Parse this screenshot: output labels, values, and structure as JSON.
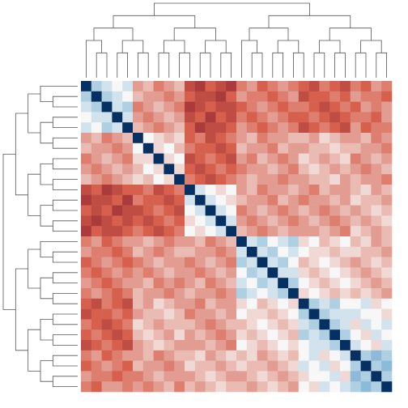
{
  "chart_data": {
    "type": "clustermap",
    "vlim": [
      -1,
      1
    ],
    "colormap": [
      "#67001f",
      "#d6604d",
      "#f7f7f7",
      "#4393c3",
      "#053061"
    ],
    "matrix": [
      [
        1,
        0.2,
        0.1,
        0,
        0.1,
        -0.3,
        -0.2,
        -0.4,
        -0.3,
        -0.2,
        -0.6,
        -0.7,
        -0.5,
        -0.6,
        -0.7,
        -0.4,
        -0.3,
        -0.5,
        -0.4,
        -0.3,
        -0.4,
        -0.5,
        -0.6,
        -0.4,
        -0.5,
        -0.6,
        -0.4,
        -0.5,
        -0.3,
        -0.4
      ],
      [
        0.2,
        1,
        0.2,
        0.1,
        0,
        -0.2,
        -0.3,
        -0.3,
        -0.4,
        -0.3,
        -0.5,
        -0.6,
        -0.6,
        -0.7,
        -0.5,
        -0.3,
        -0.4,
        -0.4,
        -0.5,
        -0.4,
        -0.3,
        -0.6,
        -0.5,
        -0.5,
        -0.4,
        -0.5,
        -0.3,
        -0.4,
        -0.4,
        -0.5
      ],
      [
        0.1,
        0.2,
        1,
        0.1,
        0.2,
        -0.4,
        -0.3,
        -0.2,
        -0.3,
        -0.4,
        -0.7,
        -0.6,
        -0.5,
        -0.6,
        -0.6,
        -0.5,
        -0.4,
        -0.3,
        -0.4,
        -0.5,
        -0.4,
        -0.4,
        -0.5,
        -0.6,
        -0.5,
        -0.4,
        -0.5,
        -0.3,
        -0.4,
        -0.3
      ],
      [
        0,
        0.1,
        0.1,
        1,
        0.1,
        -0.3,
        -0.4,
        -0.3,
        -0.2,
        -0.3,
        -0.6,
        -0.5,
        -0.7,
        -0.5,
        -0.6,
        -0.4,
        -0.5,
        -0.4,
        -0.3,
        -0.4,
        -0.5,
        -0.5,
        -0.4,
        -0.5,
        -0.6,
        -0.5,
        -0.4,
        -0.4,
        -0.5,
        -0.3
      ],
      [
        0.1,
        0,
        0.2,
        0.1,
        1,
        -0.2,
        -0.3,
        -0.4,
        -0.3,
        -0.2,
        -0.5,
        -0.7,
        -0.6,
        -0.6,
        -0.5,
        -0.3,
        -0.4,
        -0.5,
        -0.4,
        -0.3,
        -0.4,
        -0.6,
        -0.5,
        -0.4,
        -0.5,
        -0.6,
        -0.3,
        -0.5,
        -0.4,
        -0.4
      ],
      [
        -0.3,
        -0.2,
        -0.4,
        -0.3,
        -0.2,
        1,
        0,
        -0.1,
        -0.2,
        -0.1,
        -0.5,
        -0.4,
        -0.6,
        -0.5,
        -0.4,
        -0.3,
        -0.2,
        -0.4,
        -0.3,
        -0.3,
        -0.2,
        -0.2,
        -0.3,
        -0.1,
        -0.2,
        -0.3,
        -0.3,
        -0.2,
        -0.4,
        -0.3
      ],
      [
        -0.2,
        -0.3,
        -0.3,
        -0.4,
        -0.3,
        0,
        1,
        -0.1,
        0,
        -0.2,
        -0.4,
        -0.5,
        -0.5,
        -0.6,
        -0.5,
        -0.2,
        -0.3,
        -0.3,
        -0.4,
        -0.2,
        -0.3,
        -0.3,
        -0.2,
        -0.2,
        -0.1,
        -0.2,
        -0.2,
        -0.3,
        -0.3,
        -0.4
      ],
      [
        -0.4,
        -0.3,
        -0.2,
        -0.3,
        -0.4,
        -0.1,
        -0.1,
        1,
        -0.1,
        0,
        -0.6,
        -0.5,
        -0.4,
        -0.5,
        -0.6,
        -0.3,
        -0.4,
        -0.2,
        -0.3,
        -0.4,
        -0.3,
        -0.1,
        -0.2,
        -0.3,
        -0.2,
        -0.1,
        -0.4,
        -0.3,
        -0.2,
        -0.3
      ],
      [
        -0.3,
        -0.4,
        -0.3,
        -0.2,
        -0.3,
        -0.2,
        0,
        -0.1,
        1,
        -0.1,
        -0.5,
        -0.6,
        -0.5,
        -0.4,
        -0.5,
        -0.4,
        -0.3,
        -0.3,
        -0.2,
        -0.3,
        -0.4,
        -0.2,
        -0.1,
        -0.2,
        -0.3,
        -0.2,
        -0.3,
        -0.4,
        -0.3,
        -0.2
      ],
      [
        -0.2,
        -0.3,
        -0.4,
        -0.3,
        -0.2,
        -0.1,
        -0.2,
        0,
        -0.1,
        1,
        -0.4,
        -0.5,
        -0.6,
        -0.5,
        -0.4,
        -0.3,
        -0.2,
        -0.3,
        -0.3,
        -0.4,
        -0.3,
        -0.3,
        -0.2,
        -0.2,
        -0.1,
        -0.3,
        -0.2,
        -0.3,
        -0.3,
        -0.4
      ],
      [
        -0.6,
        -0.5,
        -0.7,
        -0.6,
        -0.5,
        -0.5,
        -0.4,
        -0.6,
        -0.5,
        -0.4,
        1,
        0.1,
        0,
        -0.1,
        0,
        -0.3,
        -0.2,
        -0.4,
        -0.3,
        -0.3,
        -0.2,
        -0.3,
        -0.4,
        -0.2,
        -0.3,
        -0.3,
        -0.2,
        -0.1,
        -0.3,
        -0.2
      ],
      [
        -0.7,
        -0.6,
        -0.6,
        -0.5,
        -0.7,
        -0.4,
        -0.5,
        -0.5,
        -0.6,
        -0.5,
        0.1,
        1,
        0.1,
        0,
        -0.1,
        -0.2,
        -0.3,
        -0.3,
        -0.4,
        -0.2,
        -0.3,
        -0.4,
        -0.3,
        -0.3,
        -0.2,
        -0.3,
        -0.1,
        -0.2,
        -0.2,
        -0.3
      ],
      [
        -0.5,
        -0.6,
        -0.5,
        -0.7,
        -0.6,
        -0.6,
        -0.5,
        -0.4,
        -0.5,
        -0.6,
        0,
        0.1,
        1,
        0.1,
        0,
        -0.4,
        -0.3,
        -0.2,
        -0.3,
        -0.4,
        -0.3,
        -0.2,
        -0.3,
        -0.4,
        -0.3,
        -0.2,
        -0.3,
        -0.2,
        -0.1,
        -0.2
      ],
      [
        -0.6,
        -0.7,
        -0.6,
        -0.5,
        -0.6,
        -0.5,
        -0.6,
        -0.5,
        -0.4,
        -0.5,
        -0.1,
        0,
        0.1,
        1,
        0.1,
        -0.3,
        -0.4,
        -0.3,
        -0.2,
        -0.3,
        -0.4,
        -0.3,
        -0.2,
        -0.3,
        -0.4,
        -0.3,
        -0.2,
        -0.3,
        -0.2,
        -0.1
      ],
      [
        -0.7,
        -0.5,
        -0.6,
        -0.6,
        -0.5,
        -0.4,
        -0.5,
        -0.6,
        -0.5,
        -0.4,
        0,
        -0.1,
        0,
        0.1,
        1,
        -0.2,
        -0.3,
        -0.4,
        -0.3,
        -0.2,
        -0.3,
        -0.3,
        -0.3,
        -0.2,
        -0.3,
        -0.4,
        -0.1,
        -0.2,
        -0.3,
        -0.2
      ],
      [
        -0.4,
        -0.3,
        -0.5,
        -0.4,
        -0.3,
        -0.3,
        -0.2,
        -0.3,
        -0.4,
        -0.3,
        -0.3,
        -0.2,
        -0.4,
        -0.3,
        -0.2,
        1,
        0.1,
        0.2,
        0,
        0.1,
        0.2,
        -0.1,
        0,
        -0.2,
        -0.1,
        0,
        -0.2,
        -0.1,
        -0.3,
        -0.2
      ],
      [
        -0.3,
        -0.4,
        -0.4,
        -0.5,
        -0.4,
        -0.2,
        -0.3,
        -0.4,
        -0.3,
        -0.2,
        -0.2,
        -0.3,
        -0.3,
        -0.4,
        -0.3,
        0.1,
        1,
        0.1,
        0.2,
        0,
        0.1,
        0,
        -0.1,
        -0.1,
        -0.2,
        -0.1,
        -0.1,
        -0.2,
        -0.2,
        -0.3
      ],
      [
        -0.5,
        -0.4,
        -0.3,
        -0.4,
        -0.5,
        -0.4,
        -0.3,
        -0.2,
        -0.3,
        -0.3,
        -0.4,
        -0.3,
        -0.2,
        -0.3,
        -0.4,
        0.2,
        0.1,
        1,
        0.1,
        0.2,
        0,
        -0.2,
        -0.1,
        0,
        -0.1,
        -0.2,
        -0.3,
        -0.2,
        -0.1,
        -0.2
      ],
      [
        -0.4,
        -0.5,
        -0.4,
        -0.3,
        -0.4,
        -0.3,
        -0.4,
        -0.3,
        -0.2,
        -0.3,
        -0.3,
        -0.4,
        -0.3,
        -0.2,
        -0.3,
        0,
        0.2,
        0.1,
        1,
        0.1,
        0.1,
        -0.1,
        -0.2,
        -0.1,
        0,
        -0.1,
        -0.2,
        -0.3,
        -0.2,
        -0.1
      ],
      [
        -0.3,
        -0.4,
        -0.5,
        -0.4,
        -0.3,
        -0.3,
        -0.2,
        -0.4,
        -0.3,
        -0.4,
        -0.3,
        -0.2,
        -0.4,
        -0.3,
        -0.2,
        0.1,
        0,
        0.2,
        0.1,
        1,
        0.2,
        0,
        -0.1,
        -0.2,
        -0.1,
        0,
        -0.1,
        -0.2,
        -0.3,
        -0.2
      ],
      [
        -0.4,
        -0.3,
        -0.4,
        -0.5,
        -0.4,
        -0.2,
        -0.3,
        -0.3,
        -0.4,
        -0.3,
        -0.2,
        -0.3,
        -0.3,
        -0.4,
        -0.3,
        0.2,
        0.1,
        0,
        0.1,
        0.2,
        1,
        -0.1,
        0,
        -0.1,
        -0.2,
        -0.1,
        -0.2,
        -0.1,
        -0.2,
        -0.3
      ],
      [
        -0.5,
        -0.6,
        -0.4,
        -0.5,
        -0.6,
        -0.2,
        -0.3,
        -0.1,
        -0.2,
        -0.3,
        -0.3,
        -0.4,
        -0.2,
        -0.3,
        -0.3,
        -0.1,
        0,
        -0.2,
        -0.1,
        0,
        -0.1,
        1,
        0.2,
        0.1,
        0.2,
        0,
        0,
        0.1,
        -0.1,
        0
      ],
      [
        -0.6,
        -0.5,
        -0.5,
        -0.4,
        -0.5,
        -0.3,
        -0.2,
        -0.2,
        -0.1,
        -0.2,
        -0.4,
        -0.3,
        -0.3,
        -0.2,
        -0.3,
        0,
        -0.1,
        -0.1,
        -0.2,
        -0.1,
        0,
        0.2,
        1,
        0.2,
        0.1,
        0.1,
        0.1,
        0,
        0,
        -0.1
      ],
      [
        -0.4,
        -0.5,
        -0.6,
        -0.5,
        -0.4,
        -0.1,
        -0.2,
        -0.3,
        -0.2,
        -0.2,
        -0.2,
        -0.3,
        -0.4,
        -0.3,
        -0.2,
        -0.2,
        -0.1,
        0,
        -0.1,
        -0.2,
        -0.1,
        0.1,
        0.2,
        1,
        0.2,
        0.1,
        -0.1,
        0.1,
        0,
        0.1
      ],
      [
        -0.5,
        -0.4,
        -0.5,
        -0.6,
        -0.5,
        -0.2,
        -0.1,
        -0.2,
        -0.3,
        -0.1,
        -0.3,
        -0.2,
        -0.3,
        -0.4,
        -0.3,
        -0.1,
        -0.2,
        -0.1,
        0,
        -0.1,
        -0.2,
        0.2,
        0.1,
        0.2,
        1,
        0.2,
        0,
        -0.1,
        0.1,
        0
      ],
      [
        -0.6,
        -0.5,
        -0.4,
        -0.5,
        -0.6,
        -0.3,
        -0.2,
        -0.1,
        -0.2,
        -0.3,
        -0.3,
        -0.3,
        -0.2,
        -0.3,
        -0.4,
        0,
        -0.1,
        -0.2,
        -0.1,
        0,
        -0.1,
        0,
        0.1,
        0.1,
        0.2,
        1,
        0.1,
        0,
        -0.1,
        0.1
      ],
      [
        -0.4,
        -0.3,
        -0.5,
        -0.4,
        -0.3,
        -0.3,
        -0.2,
        -0.4,
        -0.3,
        -0.2,
        -0.2,
        -0.1,
        -0.3,
        -0.2,
        -0.1,
        -0.2,
        -0.1,
        -0.3,
        -0.2,
        -0.1,
        -0.2,
        0,
        0.1,
        -0.1,
        0,
        0.1,
        1,
        0.2,
        0.3,
        0.2
      ],
      [
        -0.5,
        -0.4,
        -0.3,
        -0.4,
        -0.5,
        -0.2,
        -0.3,
        -0.3,
        -0.4,
        -0.3,
        -0.1,
        -0.2,
        -0.2,
        -0.3,
        -0.2,
        -0.1,
        -0.2,
        -0.2,
        -0.3,
        -0.2,
        -0.1,
        0.1,
        0,
        0.1,
        -0.1,
        0,
        0.2,
        1,
        0.2,
        0.3
      ],
      [
        -0.3,
        -0.4,
        -0.4,
        -0.5,
        -0.4,
        -0.4,
        -0.3,
        -0.2,
        -0.3,
        -0.3,
        -0.3,
        -0.2,
        -0.1,
        -0.2,
        -0.3,
        -0.3,
        -0.2,
        -0.1,
        -0.2,
        -0.3,
        -0.2,
        -0.1,
        0,
        0,
        0.1,
        -0.1,
        0.3,
        0.2,
        1,
        0.2
      ],
      [
        -0.4,
        -0.5,
        -0.3,
        -0.3,
        -0.4,
        -0.3,
        -0.4,
        -0.3,
        -0.2,
        -0.4,
        -0.2,
        -0.3,
        -0.2,
        -0.1,
        -0.2,
        -0.2,
        -0.3,
        -0.2,
        -0.1,
        -0.2,
        -0.3,
        0,
        -0.1,
        0.1,
        0,
        0.1,
        0.2,
        0.3,
        0.2,
        1
      ]
    ]
  }
}
